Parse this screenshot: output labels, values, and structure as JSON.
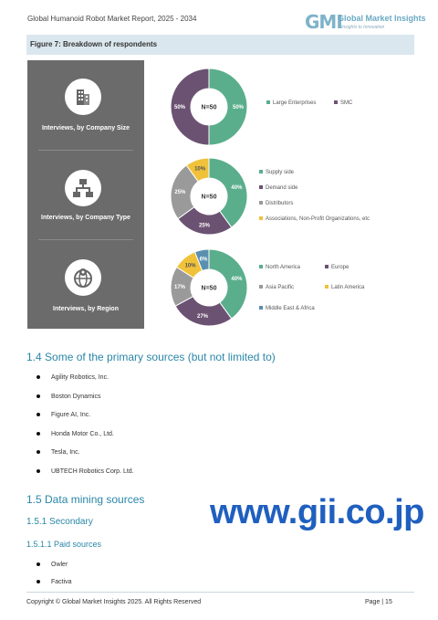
{
  "header": {
    "report_title": "Global Humanoid Robot Market Report, 2025 - 2034",
    "logo_mark": "GMI",
    "logo_name": "Global Market Insights",
    "logo_tagline": "Insights to Innovation"
  },
  "figure": {
    "caption": "Figure 7:  Breakdown of respondents"
  },
  "segments": [
    {
      "label": "Interviews, by Company Size",
      "icon": "office-building-icon"
    },
    {
      "label": "Interviews, by Company Type",
      "icon": "organization-chart-icon"
    },
    {
      "label": "Interviews, by Region",
      "icon": "globe-pin-icon"
    }
  ],
  "chart_data": [
    {
      "type": "pie",
      "center_label": "N=50",
      "labels": [
        "Large Enterprises",
        "SMC"
      ],
      "values": [
        50,
        50
      ],
      "value_labels": [
        "50%",
        "50%"
      ],
      "colors": [
        "#5aae8c",
        "#6b5272"
      ]
    },
    {
      "type": "pie",
      "center_label": "N=50",
      "labels": [
        "Supply side",
        "Demand side",
        "Distributors",
        "Associations, Non-Profit Organizations, etc"
      ],
      "values": [
        40,
        25,
        25,
        10
      ],
      "value_labels": [
        "40%",
        "25%",
        "25%",
        "10%"
      ],
      "colors": [
        "#5aae8c",
        "#6b5272",
        "#9a9a9a",
        "#f0c23a"
      ]
    },
    {
      "type": "pie",
      "center_label": "N=50",
      "labels": [
        "North America",
        "Europe",
        "Asia Pacific",
        "Latin America",
        "Middle East & Africa"
      ],
      "values": [
        40,
        27,
        17,
        10,
        6
      ],
      "value_labels": [
        "40%",
        "27%",
        "17%",
        "10%",
        "6%"
      ],
      "colors": [
        "#5aae8c",
        "#6b5272",
        "#9a9a9a",
        "#f0c23a",
        "#5b8fb0"
      ]
    }
  ],
  "section_1_4": {
    "heading": "1.4 Some of the primary sources (but not limited to)",
    "items": [
      "Agility Robotics, Inc.",
      "Boston Dynamics",
      "Figure AI, Inc.",
      "Honda Motor Co., Ltd.",
      "Tesla, Inc.",
      "UBTECH Robotics Corp. Ltd."
    ]
  },
  "section_1_5": {
    "heading": "1.5 Data mining sources",
    "sub_heading": "1.5.1 Secondary",
    "sub_sub_heading": "1.5.1.1 Paid sources",
    "items": [
      "Owler",
      "Factiva"
    ]
  },
  "watermark": "www.gii.co.jp",
  "footer": {
    "copyright": "Copyright © Global Market Insights 2025. All Rights Reserved",
    "page": "Page | 15"
  }
}
